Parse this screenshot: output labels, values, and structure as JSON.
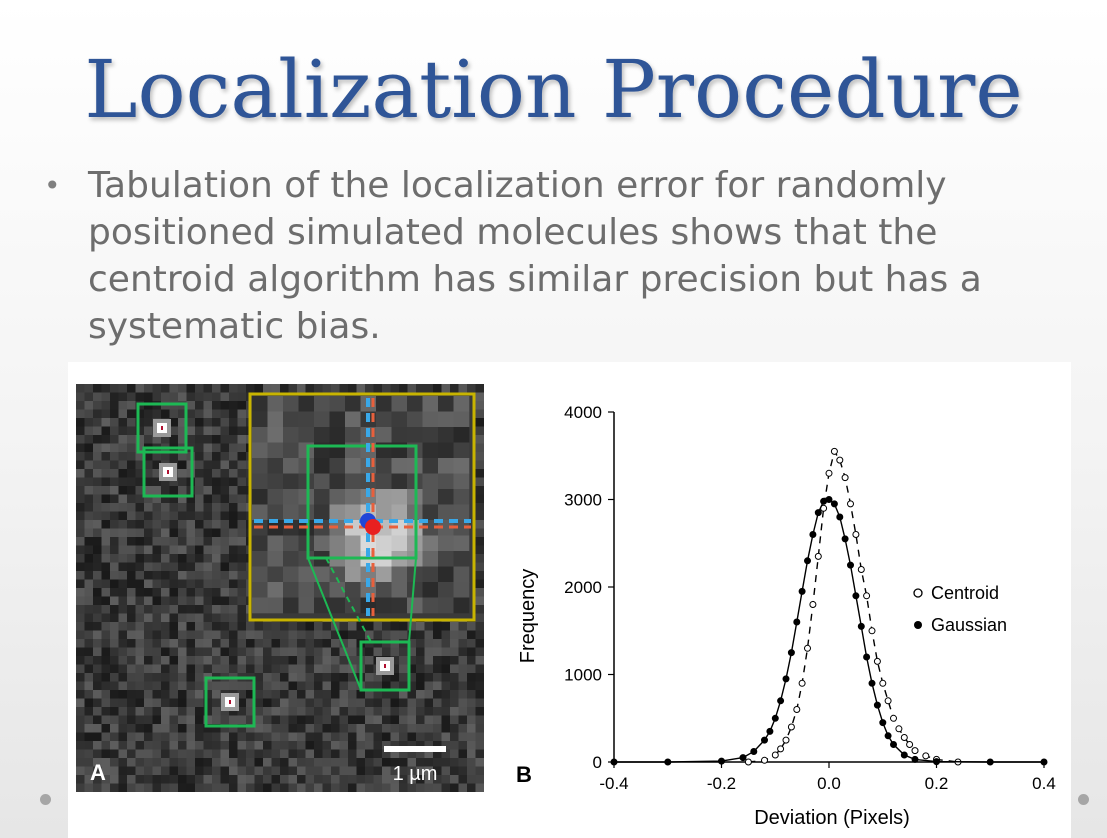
{
  "slide": {
    "title": "Localization Procedure",
    "bullets": [
      "Tabulation of the localization error for randomly positioned simulated molecules shows that the centroid algorithm has similar precision but has a systematic bias."
    ],
    "accent_color": "#2f5597"
  },
  "figure": {
    "panel_a": {
      "label": "A",
      "scale_bar": "1 µm",
      "box_color": "#1db954",
      "inset_color": "#c8b400",
      "crosshair_colors": [
        "#3aa8e8",
        "#e8603c"
      ],
      "markers": [
        "blue-dot",
        "red-dot"
      ]
    },
    "panel_b": {
      "label": "B",
      "chart_data": {
        "type": "scatter",
        "xlabel": "Deviation (Pixels)",
        "ylabel": "Frequency",
        "xlim": [
          -0.4,
          0.4
        ],
        "ylim": [
          0,
          4000
        ],
        "xticks": [
          "-0.4",
          "-0.2",
          "0.0",
          "0.2",
          "0.4"
        ],
        "yticks": [
          "0",
          "1000",
          "2000",
          "3000",
          "4000"
        ],
        "legend_position": "right",
        "series": [
          {
            "name": "Centroid",
            "marker": "open-circle",
            "line": "dashed",
            "x": [
              -0.15,
              -0.12,
              -0.1,
              -0.09,
              -0.08,
              -0.07,
              -0.06,
              -0.05,
              -0.04,
              -0.03,
              -0.02,
              -0.01,
              0.0,
              0.01,
              0.02,
              0.03,
              0.04,
              0.05,
              0.06,
              0.07,
              0.08,
              0.09,
              0.1,
              0.11,
              0.12,
              0.13,
              0.14,
              0.15,
              0.16,
              0.18,
              0.2,
              0.24
            ],
            "y": [
              0,
              20,
              80,
              150,
              250,
              400,
              600,
              900,
              1300,
              1800,
              2350,
              2900,
              3300,
              3550,
              3450,
              3250,
              2950,
              2600,
              2200,
              1900,
              1500,
              1150,
              900,
              700,
              500,
              380,
              280,
              200,
              130,
              70,
              30,
              0
            ]
          },
          {
            "name": "Gaussian",
            "marker": "filled-circle",
            "line": "solid",
            "x": [
              -0.4,
              -0.3,
              -0.2,
              -0.16,
              -0.14,
              -0.12,
              -0.11,
              -0.1,
              -0.09,
              -0.08,
              -0.07,
              -0.06,
              -0.05,
              -0.04,
              -0.03,
              -0.02,
              -0.01,
              0.0,
              0.01,
              0.02,
              0.03,
              0.04,
              0.05,
              0.06,
              0.07,
              0.08,
              0.09,
              0.1,
              0.11,
              0.12,
              0.14,
              0.16,
              0.2,
              0.3,
              0.4
            ],
            "y": [
              0,
              0,
              10,
              50,
              120,
              250,
              350,
              500,
              700,
              950,
              1250,
              1600,
              1950,
              2300,
              2600,
              2850,
              2980,
              3000,
              2950,
              2800,
              2550,
              2250,
              1900,
              1550,
              1200,
              900,
              650,
              450,
              300,
              200,
              80,
              30,
              5,
              0,
              0
            ]
          }
        ]
      }
    }
  }
}
